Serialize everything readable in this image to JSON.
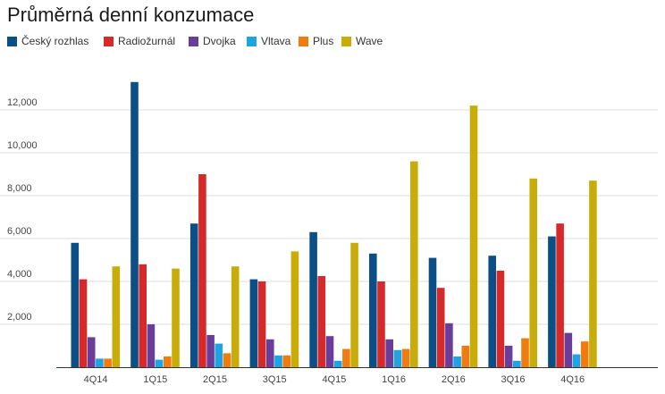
{
  "title": "Průměrná denní konzumace",
  "chart_data": {
    "type": "bar",
    "title": "Průměrná denní konzumace",
    "xlabel": "",
    "ylabel": "",
    "categories": [
      "4Q14",
      "1Q15",
      "2Q15",
      "3Q15",
      "4Q15",
      "1Q16",
      "2Q16",
      "3Q16",
      "4Q16"
    ],
    "ylim": [
      0,
      14000
    ],
    "y_ticks": [
      2000,
      4000,
      6000,
      8000,
      10000,
      12000
    ],
    "y_tick_labels": [
      "2,000",
      "4,000",
      "6,000",
      "8,000",
      "10,000",
      "12,000"
    ],
    "grid": true,
    "legend_position": "top-left",
    "series": [
      {
        "name": "Český rozhlas",
        "color": "#0b4f86",
        "values": [
          5800,
          13300,
          6700,
          4100,
          6300,
          5300,
          5100,
          5200,
          6100
        ]
      },
      {
        "name": "Radiožurnál",
        "color": "#d62a2a",
        "values": [
          4100,
          4800,
          9000,
          4000,
          4250,
          4000,
          3700,
          4500,
          6700
        ]
      },
      {
        "name": "Dvojka",
        "color": "#6a3d9a",
        "values": [
          1400,
          2000,
          1500,
          1300,
          1450,
          1300,
          2050,
          1000,
          1600
        ]
      },
      {
        "name": "Vltava",
        "color": "#1ea3e4",
        "values": [
          400,
          350,
          1100,
          550,
          300,
          800,
          500,
          300,
          600
        ]
      },
      {
        "name": "Plus",
        "color": "#f07c0f",
        "values": [
          400,
          500,
          650,
          550,
          850,
          850,
          1000,
          1350,
          1200
        ]
      },
      {
        "name": "Wave",
        "color": "#c8ad0a",
        "values": [
          4700,
          4600,
          4700,
          5400,
          5800,
          9600,
          12200,
          8800,
          8700
        ]
      }
    ]
  }
}
